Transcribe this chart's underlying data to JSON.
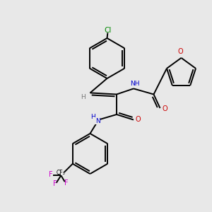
{
  "bg_color": "#e8e8e8",
  "atom_colors": {
    "C": "#000000",
    "H": "#777777",
    "N": "#0000cc",
    "O": "#cc0000",
    "Cl": "#008800",
    "F": "#cc00cc"
  },
  "bond_color": "#000000",
  "bond_width": 1.4
}
